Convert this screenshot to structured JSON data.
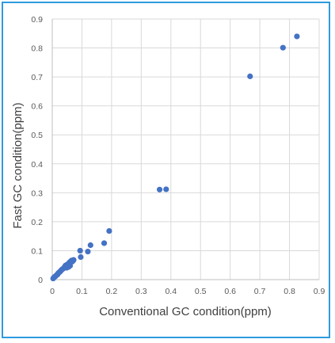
{
  "chart_data": {
    "type": "scatter",
    "title": "",
    "xlabel": "Conventional GC condition(ppm)",
    "ylabel": "Fast GC condition(ppm)",
    "xlim": [
      0,
      0.9
    ],
    "ylim": [
      0,
      0.9
    ],
    "x_ticks": [
      "0",
      "0.1",
      "0.2",
      "0.3",
      "0.4",
      "0.5",
      "0.6",
      "0.7",
      "0.8",
      "0.9"
    ],
    "y_ticks": [
      "0",
      "0.1",
      "0.2",
      "0.3",
      "0.4",
      "0.5",
      "0.6",
      "0.7",
      "0.8",
      "0.9"
    ],
    "grid": true,
    "legend": "none",
    "marker_color": "#4472c4",
    "series": [
      {
        "points": [
          [
            0.003,
            0.004
          ],
          [
            0.006,
            0.008
          ],
          [
            0.009,
            0.01
          ],
          [
            0.012,
            0.013
          ],
          [
            0.015,
            0.016
          ],
          [
            0.018,
            0.018
          ],
          [
            0.02,
            0.022
          ],
          [
            0.023,
            0.025
          ],
          [
            0.026,
            0.027
          ],
          [
            0.028,
            0.03
          ],
          [
            0.031,
            0.033
          ],
          [
            0.034,
            0.036
          ],
          [
            0.037,
            0.038
          ],
          [
            0.04,
            0.041
          ],
          [
            0.043,
            0.046
          ],
          [
            0.045,
            0.049
          ],
          [
            0.049,
            0.041
          ],
          [
            0.05,
            0.052
          ],
          [
            0.052,
            0.05
          ],
          [
            0.055,
            0.044
          ],
          [
            0.057,
            0.058
          ],
          [
            0.059,
            0.06
          ],
          [
            0.06,
            0.048
          ],
          [
            0.062,
            0.063
          ],
          [
            0.065,
            0.066
          ],
          [
            0.067,
            0.062
          ],
          [
            0.07,
            0.065
          ],
          [
            0.072,
            0.068
          ],
          [
            0.094,
            0.1
          ],
          [
            0.096,
            0.078
          ],
          [
            0.12,
            0.097
          ],
          [
            0.129,
            0.119
          ],
          [
            0.175,
            0.126
          ],
          [
            0.192,
            0.168
          ],
          [
            0.362,
            0.311
          ],
          [
            0.384,
            0.312
          ],
          [
            0.667,
            0.702
          ],
          [
            0.778,
            0.801
          ],
          [
            0.825,
            0.84
          ]
        ]
      }
    ]
  }
}
